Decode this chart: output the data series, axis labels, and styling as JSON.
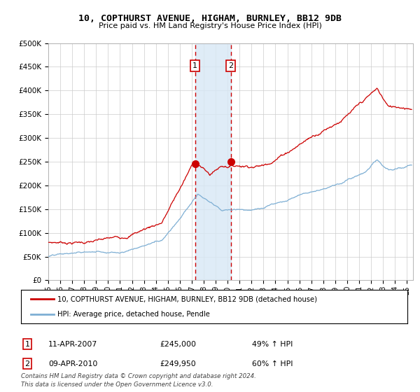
{
  "title": "10, COPTHURST AVENUE, HIGHAM, BURNLEY, BB12 9DB",
  "subtitle": "Price paid vs. HM Land Registry's House Price Index (HPI)",
  "ylim": [
    0,
    500000
  ],
  "yticks": [
    0,
    50000,
    100000,
    150000,
    200000,
    250000,
    300000,
    350000,
    400000,
    450000,
    500000
  ],
  "ytick_labels": [
    "£0",
    "£50K",
    "£100K",
    "£150K",
    "£200K",
    "£250K",
    "£300K",
    "£350K",
    "£400K",
    "£450K",
    "£500K"
  ],
  "bg_color": "#ffffff",
  "grid_color": "#cccccc",
  "red_color": "#cc0000",
  "blue_color": "#7eafd4",
  "shade_color": "#d8e8f5",
  "label1": "10, COPTHURST AVENUE, HIGHAM, BURNLEY, BB12 9DB (detached house)",
  "label2": "HPI: Average price, detached house, Pendle",
  "purchase1_date": "11-APR-2007",
  "purchase1_price": "£245,000",
  "purchase1_hpi": "49% ↑ HPI",
  "purchase1_year": 2007.28,
  "purchase1_value": 245000,
  "purchase2_date": "09-APR-2010",
  "purchase2_price": "£249,950",
  "purchase2_hpi": "60% ↑ HPI",
  "purchase2_year": 2010.27,
  "purchase2_value": 249950,
  "footer": "Contains HM Land Registry data © Crown copyright and database right 2024.\nThis data is licensed under the Open Government Licence v3.0.",
  "xstart": 1995.0,
  "xend": 2025.5
}
